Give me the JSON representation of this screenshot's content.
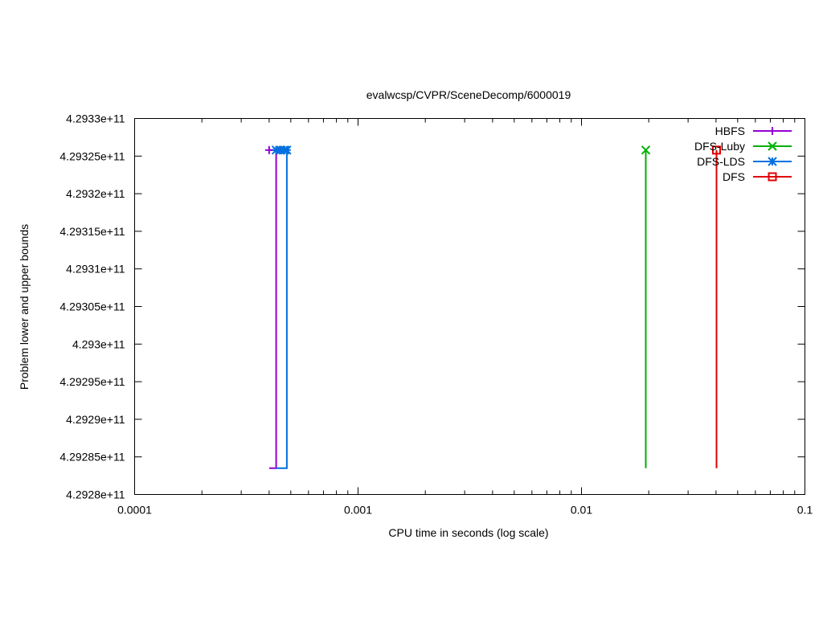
{
  "chart_data": {
    "type": "line",
    "title": "evalwcsp/CVPR/SceneDecomp/6000019",
    "xlabel": "CPU time in seconds (log scale)",
    "ylabel": "Problem lower and upper bounds",
    "x_scale": "log",
    "xlim": [
      0.0001,
      0.1
    ],
    "ylim": [
      429280000000,
      429330000000
    ],
    "x_ticks": [
      {
        "value": 0.0001,
        "label": "0.0001"
      },
      {
        "value": 0.001,
        "label": "0.001"
      },
      {
        "value": 0.01,
        "label": "0.01"
      },
      {
        "value": 0.1,
        "label": "0.1"
      }
    ],
    "y_ticks": [
      {
        "value": 429280000000,
        "label": "4.2928e+11"
      },
      {
        "value": 429285000000,
        "label": "4.29285e+11"
      },
      {
        "value": 429290000000,
        "label": "4.2929e+11"
      },
      {
        "value": 429295000000,
        "label": "4.29295e+11"
      },
      {
        "value": 429300000000,
        "label": "4.293e+11"
      },
      {
        "value": 429305000000,
        "label": "4.29305e+11"
      },
      {
        "value": 429310000000,
        "label": "4.2931e+11"
      },
      {
        "value": 429315000000,
        "label": "4.29315e+11"
      },
      {
        "value": 429320000000,
        "label": "4.2932e+11"
      },
      {
        "value": 429325000000,
        "label": "4.29325e+11"
      },
      {
        "value": 429330000000,
        "label": "4.2933e+11"
      }
    ],
    "grid": false,
    "legend_position": "top-right",
    "series": [
      {
        "name": "HBFS",
        "color": "#9400d3",
        "marker": "plus",
        "upper": [
          {
            "x": 0.0004,
            "y": 429325800000
          },
          {
            "x": 0.00043,
            "y": 429325800000
          }
        ],
        "lower": [
          {
            "x": 0.0004,
            "y": 429283500000
          },
          {
            "x": 0.00043,
            "y": 429283500000
          }
        ]
      },
      {
        "name": "DFS-Luby",
        "color": "#00b000",
        "marker": "cross",
        "upper": [
          {
            "x": 0.0194,
            "y": 429325800000
          }
        ],
        "lower": [
          {
            "x": 0.0194,
            "y": 429283500000
          }
        ]
      },
      {
        "name": "DFS-LDS",
        "color": "#0070e0",
        "marker": "star",
        "upper": [
          {
            "x": 0.00043,
            "y": 429325800000
          },
          {
            "x": 0.00045,
            "y": 429325800000
          },
          {
            "x": 0.00047,
            "y": 429325800000
          },
          {
            "x": 0.00048,
            "y": 429325800000
          }
        ],
        "lower": [
          {
            "x": 0.00043,
            "y": 429283500000
          },
          {
            "x": 0.00048,
            "y": 429283500000
          }
        ]
      },
      {
        "name": "DFS",
        "color": "#e00000",
        "marker": "square",
        "upper": [
          {
            "x": 0.0402,
            "y": 429325800000
          }
        ],
        "lower": [
          {
            "x": 0.0402,
            "y": 429283500000
          }
        ]
      }
    ]
  }
}
